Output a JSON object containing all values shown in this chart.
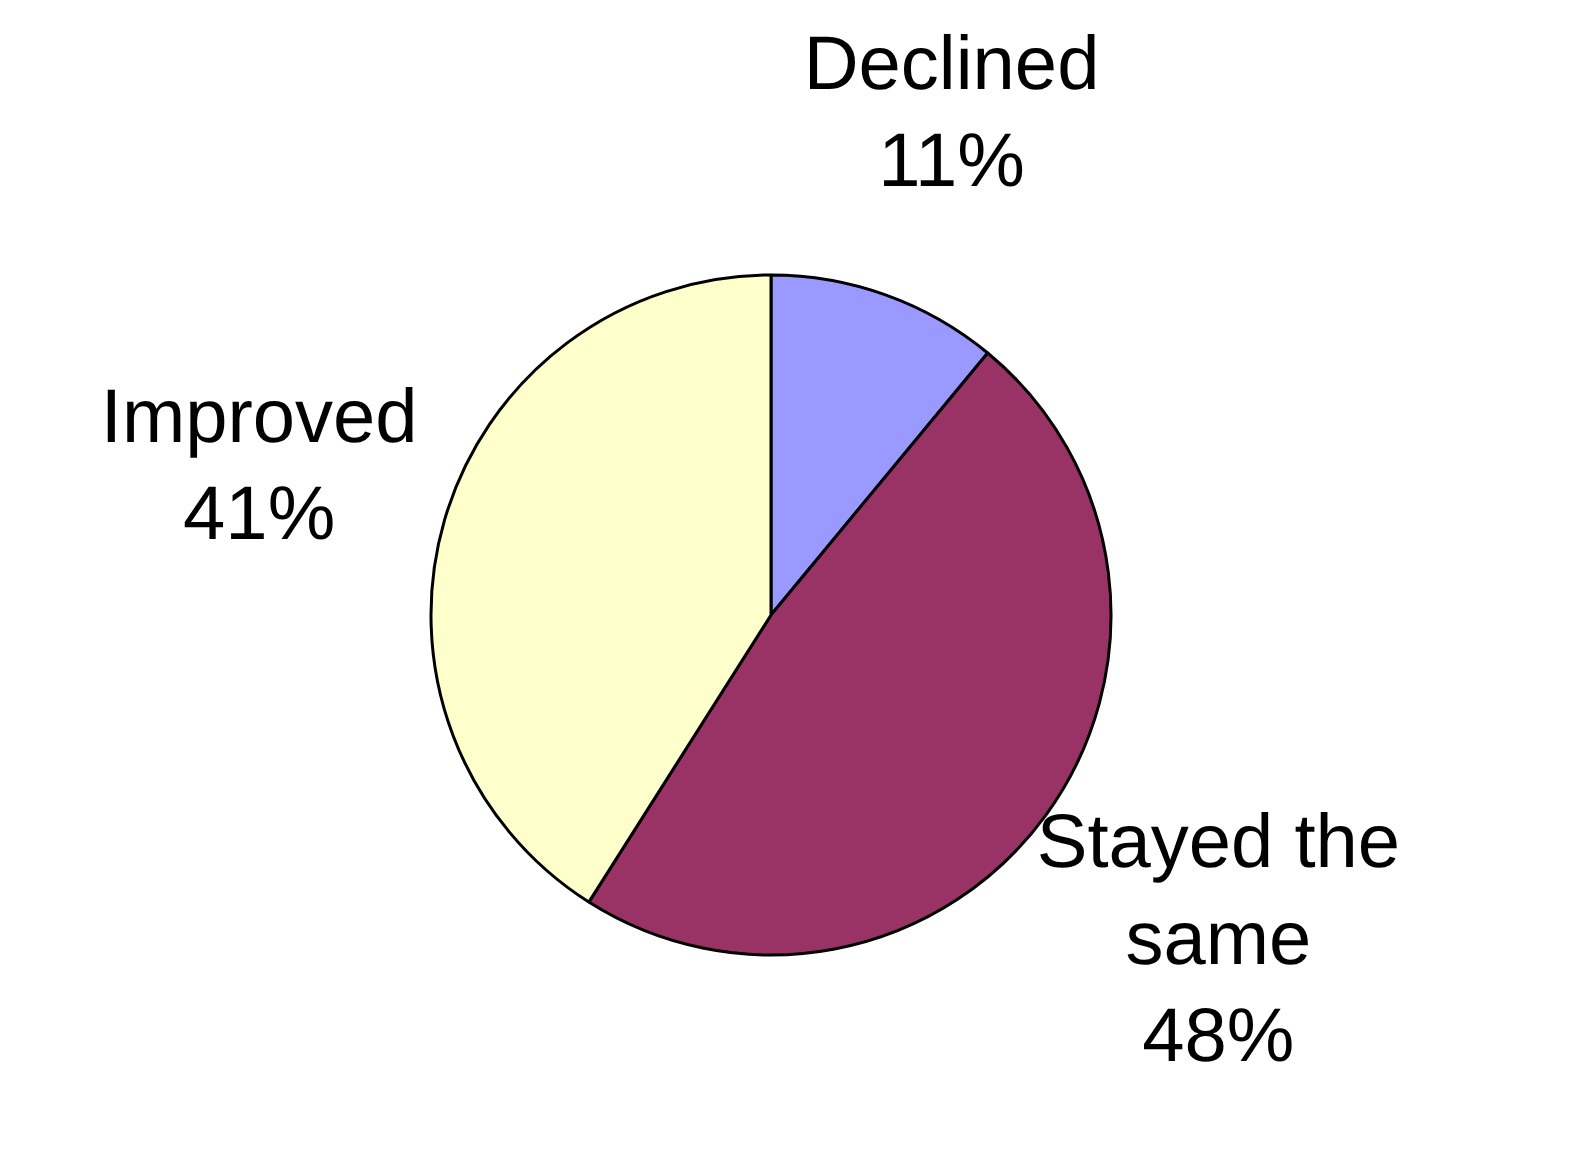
{
  "chart_data": {
    "type": "pie",
    "categories": [
      "Declined",
      "Stayed the same",
      "Improved"
    ],
    "values": [
      11,
      48,
      41
    ],
    "colors": [
      "#9999ff",
      "#993366",
      "#ffffcc"
    ],
    "value_labels": [
      "11%",
      "48%",
      "41%"
    ]
  }
}
